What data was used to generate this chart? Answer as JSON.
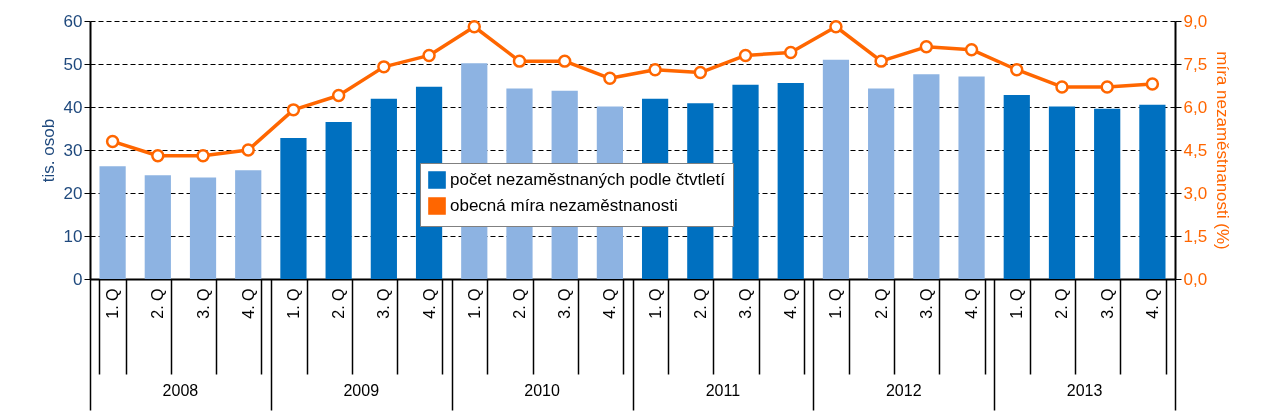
{
  "chart_data": {
    "type": "bar",
    "xlabel": null,
    "ylabel": "tis. osob",
    "y2label": "míra nezaměstnanosti (%)",
    "categories": [
      "1. Q",
      "2. Q",
      "3. Q",
      "4. Q",
      "1. Q",
      "2. Q",
      "3. Q",
      "4. Q",
      "1. Q",
      "2. Q",
      "3. Q",
      "4. Q",
      "1. Q",
      "2. Q",
      "3. Q",
      "4. Q",
      "1. Q",
      "2. Q",
      "3. Q",
      "4. Q",
      "1. Q",
      "2. Q",
      "3. Q",
      "4. Q"
    ],
    "series": [
      {
        "name": "počet nezaměstnaných podle čtvtletí",
        "color": "#0070c0",
        "colors": [
          "#8db3e2",
          "#8db3e2",
          "#8db3e2",
          "#8db3e2",
          "#0070c0",
          "#0070c0",
          "#0070c0",
          "#0070c0",
          "#8db3e2",
          "#8db3e2",
          "#8db3e2",
          "#8db3e2",
          "#0070c0",
          "#0070c0",
          "#0070c0",
          "#0070c0",
          "#8db3e2",
          "#8db3e2",
          "#8db3e2",
          "#8db3e2",
          "#0070c0",
          "#0070c0",
          "#0070c0",
          "#0070c0"
        ],
        "values": [
          26.2,
          24.1,
          23.6,
          25.3,
          32.8,
          36.5,
          41.9,
          44.7,
          50.2,
          44.3,
          43.8,
          40.1,
          41.9,
          40.9,
          45.2,
          45.6,
          51.0,
          44.3,
          47.6,
          47.1,
          42.8,
          40.1,
          39.6,
          40.5
        ]
      },
      {
        "name": "obecná míra nezaměstnanosti",
        "type": "line",
        "axis": "y2",
        "color": "#ff6600",
        "values": [
          4.8,
          4.3,
          4.3,
          4.5,
          5.9,
          6.4,
          7.4,
          7.8,
          8.8,
          7.6,
          7.6,
          7.0,
          7.3,
          7.2,
          7.8,
          7.9,
          8.8,
          7.6,
          8.1,
          8.0,
          7.3,
          6.7,
          6.7,
          6.8
        ]
      }
    ],
    "ylim": [
      0,
      60
    ],
    "yticks": [
      0,
      10,
      20,
      30,
      40,
      50,
      60
    ],
    "y2lim": [
      0,
      9
    ],
    "y2ticks": [
      {
        "value": 0,
        "label": "0,0"
      },
      {
        "value": 1.5,
        "label": "1,5"
      },
      {
        "value": 3,
        "label": "3,0"
      },
      {
        "value": 4.5,
        "label": "4,5"
      },
      {
        "value": 6,
        "label": "6,0"
      },
      {
        "value": 7.5,
        "label": "7,5"
      },
      {
        "value": 9,
        "label": "9,0"
      }
    ],
    "grid": "y",
    "marker": "circle",
    "line_style": "solid",
    "legend": "center",
    "annotations": [
      "2008",
      "2009",
      "2010",
      "2011",
      "2012",
      "2013"
    ]
  }
}
